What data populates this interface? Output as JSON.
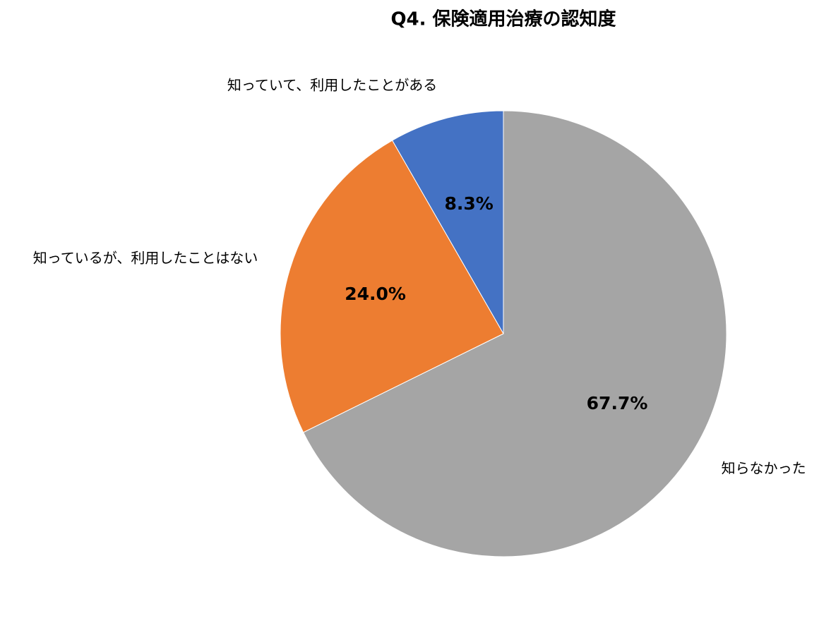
{
  "chart_data": {
    "type": "pie",
    "title": "Q4. 保険適用治療の認知度",
    "categories": [
      "知っていて、利用したことがある",
      "知っているが、利用したことはない",
      "知らなかった"
    ],
    "values": [
      8.3,
      24.0,
      67.7
    ],
    "value_labels": [
      "8.3%",
      "24.0%",
      "67.7%"
    ],
    "colors": [
      "#4472c4",
      "#ed7d31",
      "#a5a5a5"
    ]
  }
}
